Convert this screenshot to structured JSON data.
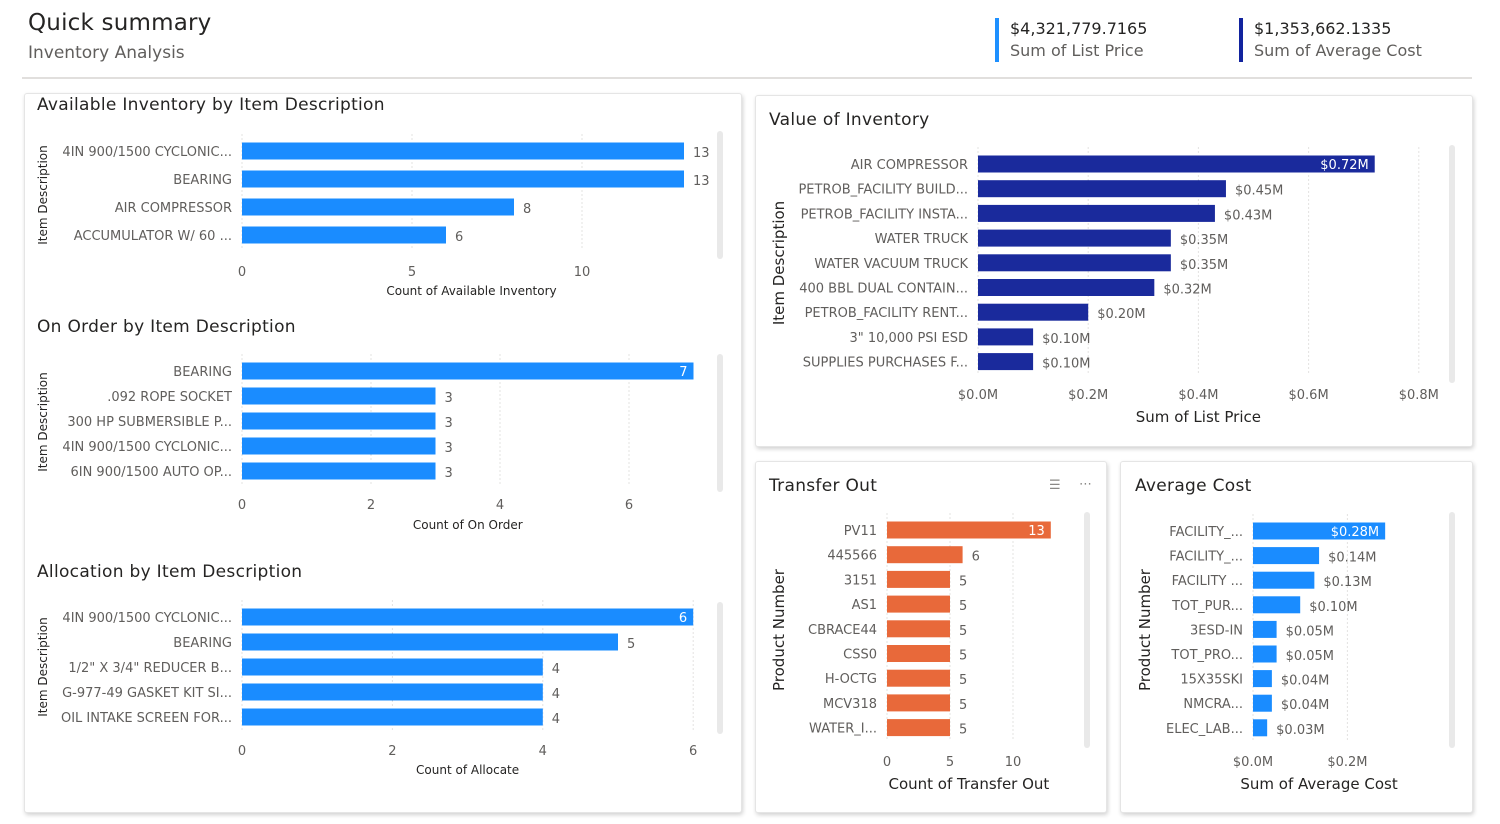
{
  "header": {
    "title": "Quick summary",
    "subtitle": "Inventory Analysis"
  },
  "kpis": [
    {
      "value": "$4,321,779.7165",
      "label": "Sum of List Price"
    },
    {
      "value": "$1,353,662.1335",
      "label": "Sum of Average Cost"
    }
  ],
  "colors": {
    "blue": "#1a8cff",
    "navy": "#1a2a9c",
    "orange": "#e8693a",
    "axis": "#605e5c",
    "grid": "#c8c6c4"
  },
  "panels": {
    "available": {
      "title": "Available Inventory by Item Description"
    },
    "onorder": {
      "title": "On Order by Item Description"
    },
    "allocation": {
      "title": "Allocation by Item Description"
    },
    "value": {
      "title": "Value of Inventory"
    },
    "transfer": {
      "title": "Transfer Out"
    },
    "avgcost": {
      "title": "Average Cost"
    }
  },
  "chart_data": [
    {
      "id": "available",
      "type": "bar",
      "orientation": "horizontal",
      "title": "Available Inventory by Item Description",
      "categories": [
        "4IN 900/1500 CYCLONIC...",
        "BEARING",
        "AIR COMPRESSOR",
        "ACCUMULATOR W/ 60 ..."
      ],
      "values": [
        13,
        13,
        8,
        6
      ],
      "labels": [
        "13",
        "13",
        "8",
        "6"
      ],
      "xlabel": "Count of Available Inventory",
      "ylabel": "Item Description",
      "xlim": [
        0,
        13.5
      ],
      "ticks": [
        0,
        5,
        10
      ],
      "tick_labels": [
        "0",
        "5",
        "10"
      ],
      "color": "blue"
    },
    {
      "id": "onorder",
      "type": "bar",
      "orientation": "horizontal",
      "title": "On Order by Item Description",
      "categories": [
        "BEARING",
        ".092 ROPE SOCKET",
        "300 HP SUBMERSIBLE P...",
        "4IN 900/1500 CYCLONIC...",
        "6IN 900/1500 AUTO OP..."
      ],
      "values": [
        7,
        3,
        3,
        3,
        3
      ],
      "labels": [
        "7",
        "3",
        "3",
        "3",
        "3"
      ],
      "xlabel": "Count of On Order",
      "ylabel": "Item Description",
      "xlim": [
        0,
        7
      ],
      "ticks": [
        0,
        2,
        4,
        6
      ],
      "tick_labels": [
        "0",
        "2",
        "4",
        "6"
      ],
      "color": "blue"
    },
    {
      "id": "allocation",
      "type": "bar",
      "orientation": "horizontal",
      "title": "Allocation by Item Description",
      "categories": [
        "4IN 900/1500 CYCLONIC...",
        "BEARING",
        "1/2\" X 3/4\" REDUCER B...",
        "G-977-49 GASKET KIT SI...",
        "OIL INTAKE SCREEN FOR..."
      ],
      "values": [
        6,
        5,
        4,
        4,
        4
      ],
      "labels": [
        "6",
        "5",
        "4",
        "4",
        "4"
      ],
      "xlabel": "Count of Allocate",
      "ylabel": "Item Description",
      "xlim": [
        0,
        6
      ],
      "ticks": [
        0,
        2,
        4,
        6
      ],
      "tick_labels": [
        "0",
        "2",
        "4",
        "6"
      ],
      "color": "blue"
    },
    {
      "id": "value",
      "type": "bar",
      "orientation": "horizontal",
      "title": "Value of Inventory",
      "categories": [
        "AIR COMPRESSOR",
        "PETROB_FACILITY BUILD...",
        "PETROB_FACILITY INSTA...",
        "WATER TRUCK",
        "WATER VACUUM TRUCK",
        "400 BBL DUAL CONTAIN...",
        "PETROB_FACILITY RENT...",
        "3\" 10,000 PSI ESD",
        "SUPPLIES PURCHASES F..."
      ],
      "values": [
        0.72,
        0.45,
        0.43,
        0.35,
        0.35,
        0.32,
        0.2,
        0.1,
        0.1
      ],
      "labels": [
        "$0.72M",
        "$0.45M",
        "$0.43M",
        "$0.35M",
        "$0.35M",
        "$0.32M",
        "$0.20M",
        "$0.10M",
        "$0.10M"
      ],
      "xlabel": "Sum of List Price",
      "ylabel": "Item Description",
      "xlim": [
        0,
        0.8
      ],
      "ticks": [
        0,
        0.2,
        0.4,
        0.6,
        0.8
      ],
      "tick_labels": [
        "$0.0M",
        "$0.2M",
        "$0.4M",
        "$0.6M",
        "$0.8M"
      ],
      "color": "navy"
    },
    {
      "id": "transfer",
      "type": "bar",
      "orientation": "horizontal",
      "title": "Transfer Out",
      "categories": [
        "PV11",
        "445566",
        "3151",
        "AS1",
        "CBRACE44",
        "CSS0",
        "H-OCTG",
        "MCV318",
        "WATER_I..."
      ],
      "values": [
        13,
        6,
        5,
        5,
        5,
        5,
        5,
        5,
        5
      ],
      "labels": [
        "13",
        "6",
        "5",
        "5",
        "5",
        "5",
        "5",
        "5",
        "5"
      ],
      "xlabel": "Count of Transfer Out",
      "ylabel": "Product Number",
      "xlim": [
        0,
        13
      ],
      "ticks": [
        0,
        5,
        10
      ],
      "tick_labels": [
        "0",
        "5",
        "10"
      ],
      "color": "orange"
    },
    {
      "id": "avgcost",
      "type": "bar",
      "orientation": "horizontal",
      "title": "Average Cost",
      "categories": [
        "FACILITY_...",
        "FACILITY_...",
        "FACILITY ...",
        "TOT_PUR...",
        "3ESD-IN",
        "TOT_PRO...",
        "15X35SKI",
        "NMCRA...",
        "ELEC_LAB..."
      ],
      "values": [
        0.28,
        0.14,
        0.13,
        0.1,
        0.05,
        0.05,
        0.04,
        0.04,
        0.03
      ],
      "labels": [
        "$0.28M",
        "$0.14M",
        "$0.13M",
        "$0.10M",
        "$0.05M",
        "$0.05M",
        "$0.04M",
        "$0.04M",
        "$0.03M"
      ],
      "xlabel": "Sum of Average Cost",
      "ylabel": "Product Number",
      "xlim": [
        0,
        0.28
      ],
      "ticks": [
        0,
        0.2
      ],
      "tick_labels": [
        "$0.0M",
        "$0.2M"
      ],
      "color": "blue"
    }
  ]
}
